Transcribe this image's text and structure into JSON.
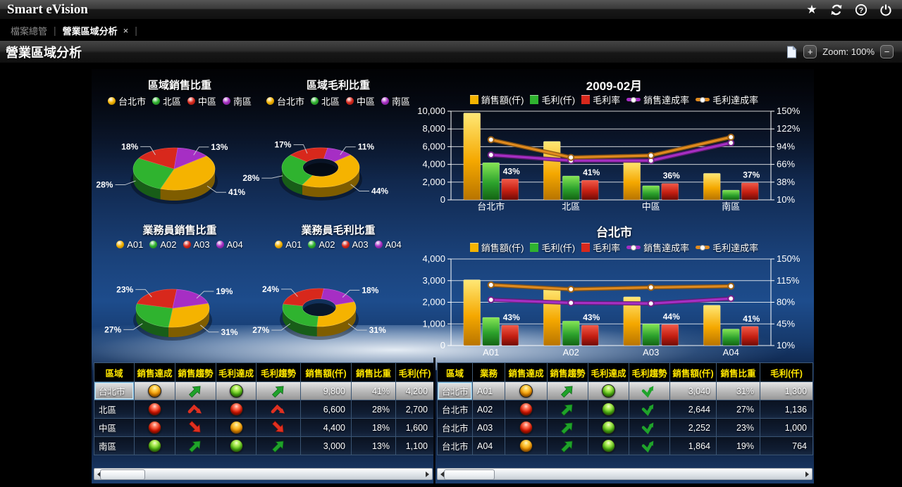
{
  "app": {
    "title": "Smart eVision"
  },
  "tabs": {
    "file_explorer": "檔案總管",
    "active": "營業區域分析",
    "close": "×",
    "separator": "|"
  },
  "titlebar": {
    "title": "營業區域分析",
    "zoom_in": "+",
    "zoom_label": "Zoom: 100%",
    "zoom_out": "−"
  },
  "colors": {
    "yellow": "#f5b300",
    "green": "#2fb32f",
    "red": "#d8281c",
    "purple": "#a62ec4",
    "orange": "#e08a1e",
    "header_text": "#ffe600"
  },
  "chart_data": [
    {
      "type": "pie",
      "title": "區域銷售比重",
      "legend": [
        "台北市",
        "北區",
        "中區",
        "南區"
      ],
      "values": [
        41,
        28,
        18,
        13
      ],
      "value_labels": [
        "41%",
        "28%",
        "18%",
        "13%"
      ],
      "donut": false
    },
    {
      "type": "pie",
      "title": "區域毛利比重",
      "legend": [
        "台北市",
        "北區",
        "中區",
        "南區"
      ],
      "values": [
        44,
        28,
        17,
        11
      ],
      "value_labels": [
        "44%",
        "28%",
        "17%",
        "11%"
      ],
      "donut": true
    },
    {
      "type": "pie",
      "title": "業務員銷售比重",
      "legend": [
        "A01",
        "A02",
        "A03",
        "A04"
      ],
      "values": [
        31,
        27,
        23,
        19
      ],
      "value_labels": [
        "31%",
        "27%",
        "23%",
        "19%"
      ],
      "donut": false
    },
    {
      "type": "pie",
      "title": "業務員毛利比重",
      "legend": [
        "A01",
        "A02",
        "A03",
        "A04"
      ],
      "values": [
        31,
        27,
        24,
        18
      ],
      "value_labels": [
        "31%",
        "27%",
        "24%",
        "18%"
      ],
      "donut": true
    },
    {
      "type": "combo",
      "title": "2009-02月",
      "categories": [
        "台北市",
        "北區",
        "中區",
        "南區"
      ],
      "left_axis": {
        "min": 0,
        "max": 10000,
        "ticks": [
          "0",
          "2,000",
          "4,000",
          "6,000",
          "8,000",
          "10,000"
        ]
      },
      "right_axis": {
        "min": 10,
        "max": 150,
        "ticks": [
          "10%",
          "38%",
          "66%",
          "94%",
          "122%",
          "150%"
        ]
      },
      "series": [
        {
          "name": "銷售額(仟)",
          "kind": "bar",
          "axis": "left",
          "color_key": "yellow",
          "values": [
            9800,
            6600,
            4400,
            3000
          ]
        },
        {
          "name": "毛利(仟)",
          "kind": "bar",
          "axis": "left",
          "color_key": "green",
          "values": [
            4200,
            2700,
            1600,
            1100
          ]
        },
        {
          "name": "毛利率",
          "kind": "bar",
          "axis": "right",
          "color_key": "red",
          "values": [
            43,
            41,
            36,
            37
          ],
          "point_labels": [
            "43%",
            "41%",
            "36%",
            "37%"
          ]
        },
        {
          "name": "銷售達成率",
          "kind": "line",
          "axis": "right",
          "color_key": "purple",
          "values": [
            81,
            72,
            72,
            100
          ]
        },
        {
          "name": "毛利達成率",
          "kind": "line",
          "axis": "right",
          "color_key": "orange",
          "values": [
            105,
            77,
            80,
            109
          ]
        }
      ]
    },
    {
      "type": "combo",
      "title": "台北市",
      "categories": [
        "A01",
        "A02",
        "A03",
        "A04"
      ],
      "left_axis": {
        "min": 0,
        "max": 4000,
        "ticks": [
          "0",
          "1,000",
          "2,000",
          "3,000",
          "4,000"
        ]
      },
      "right_axis": {
        "min": 10,
        "max": 150,
        "ticks": [
          "10%",
          "45%",
          "80%",
          "115%",
          "150%"
        ]
      },
      "series": [
        {
          "name": "銷售額(仟)",
          "kind": "bar",
          "axis": "left",
          "color_key": "yellow",
          "values": [
            3040,
            2644,
            2252,
            1864
          ]
        },
        {
          "name": "毛利(仟)",
          "kind": "bar",
          "axis": "left",
          "color_key": "green",
          "values": [
            1300,
            1136,
            1000,
            764
          ]
        },
        {
          "name": "毛利率",
          "kind": "bar",
          "axis": "right",
          "color_key": "red",
          "values": [
            43,
            43,
            44,
            41
          ],
          "point_labels": [
            "43%",
            "43%",
            "44%",
            "41%"
          ]
        },
        {
          "name": "銷售達成率",
          "kind": "line",
          "axis": "right",
          "color_key": "purple",
          "values": [
            84,
            79,
            78,
            86
          ]
        },
        {
          "name": "毛利達成率",
          "kind": "line",
          "axis": "right",
          "color_key": "orange",
          "values": [
            108,
            101,
            104,
            106
          ]
        }
      ]
    }
  ],
  "left_table": {
    "headers": [
      "區域",
      "銷售達成",
      "銷售趨勢",
      "毛利達成",
      "毛利趨勢",
      "銷售額(仟)",
      "銷售比重",
      "毛利(仟)"
    ],
    "kinds": [
      "text",
      "ball",
      "arrow",
      "ball",
      "arrow",
      "num",
      "num",
      "num"
    ],
    "rows": [
      {
        "selected": true,
        "cells": [
          "台北市",
          "orange",
          "up-green",
          "green",
          "up-green",
          "9,800",
          "41%",
          "4,200"
        ]
      },
      {
        "selected": false,
        "cells": [
          "北區",
          "red",
          "peak-red",
          "red",
          "peak-red",
          "6,600",
          "28%",
          "2,700"
        ]
      },
      {
        "selected": false,
        "cells": [
          "中區",
          "red",
          "down-red",
          "orange",
          "down-red",
          "4,400",
          "18%",
          "1,600"
        ]
      },
      {
        "selected": false,
        "cells": [
          "南區",
          "green",
          "up-green",
          "green",
          "up-green",
          "3,000",
          "13%",
          "1,100"
        ]
      }
    ]
  },
  "right_table": {
    "headers": [
      "區域",
      "業務",
      "銷售達成",
      "銷售趨勢",
      "毛利達成",
      "毛利趨勢",
      "銷售額(仟)",
      "銷售比重",
      "毛利(仟)"
    ],
    "kinds": [
      "text",
      "text",
      "ball",
      "arrow",
      "ball",
      "arrow",
      "num",
      "num",
      "num"
    ],
    "rows": [
      {
        "selected": true,
        "cells": [
          "台北市",
          "A01",
          "orange",
          "up-green",
          "green",
          "check-green",
          "3,040",
          "31%",
          "1,300"
        ]
      },
      {
        "selected": false,
        "cells": [
          "台北市",
          "A02",
          "red",
          "up-green",
          "green",
          "check-green",
          "2,644",
          "27%",
          "1,136"
        ]
      },
      {
        "selected": false,
        "cells": [
          "台北市",
          "A03",
          "red",
          "up-green",
          "green",
          "check-green",
          "2,252",
          "23%",
          "1,000"
        ]
      },
      {
        "selected": false,
        "cells": [
          "台北市",
          "A04",
          "orange",
          "up-green",
          "green",
          "check-green",
          "1,864",
          "19%",
          "764"
        ]
      }
    ]
  }
}
